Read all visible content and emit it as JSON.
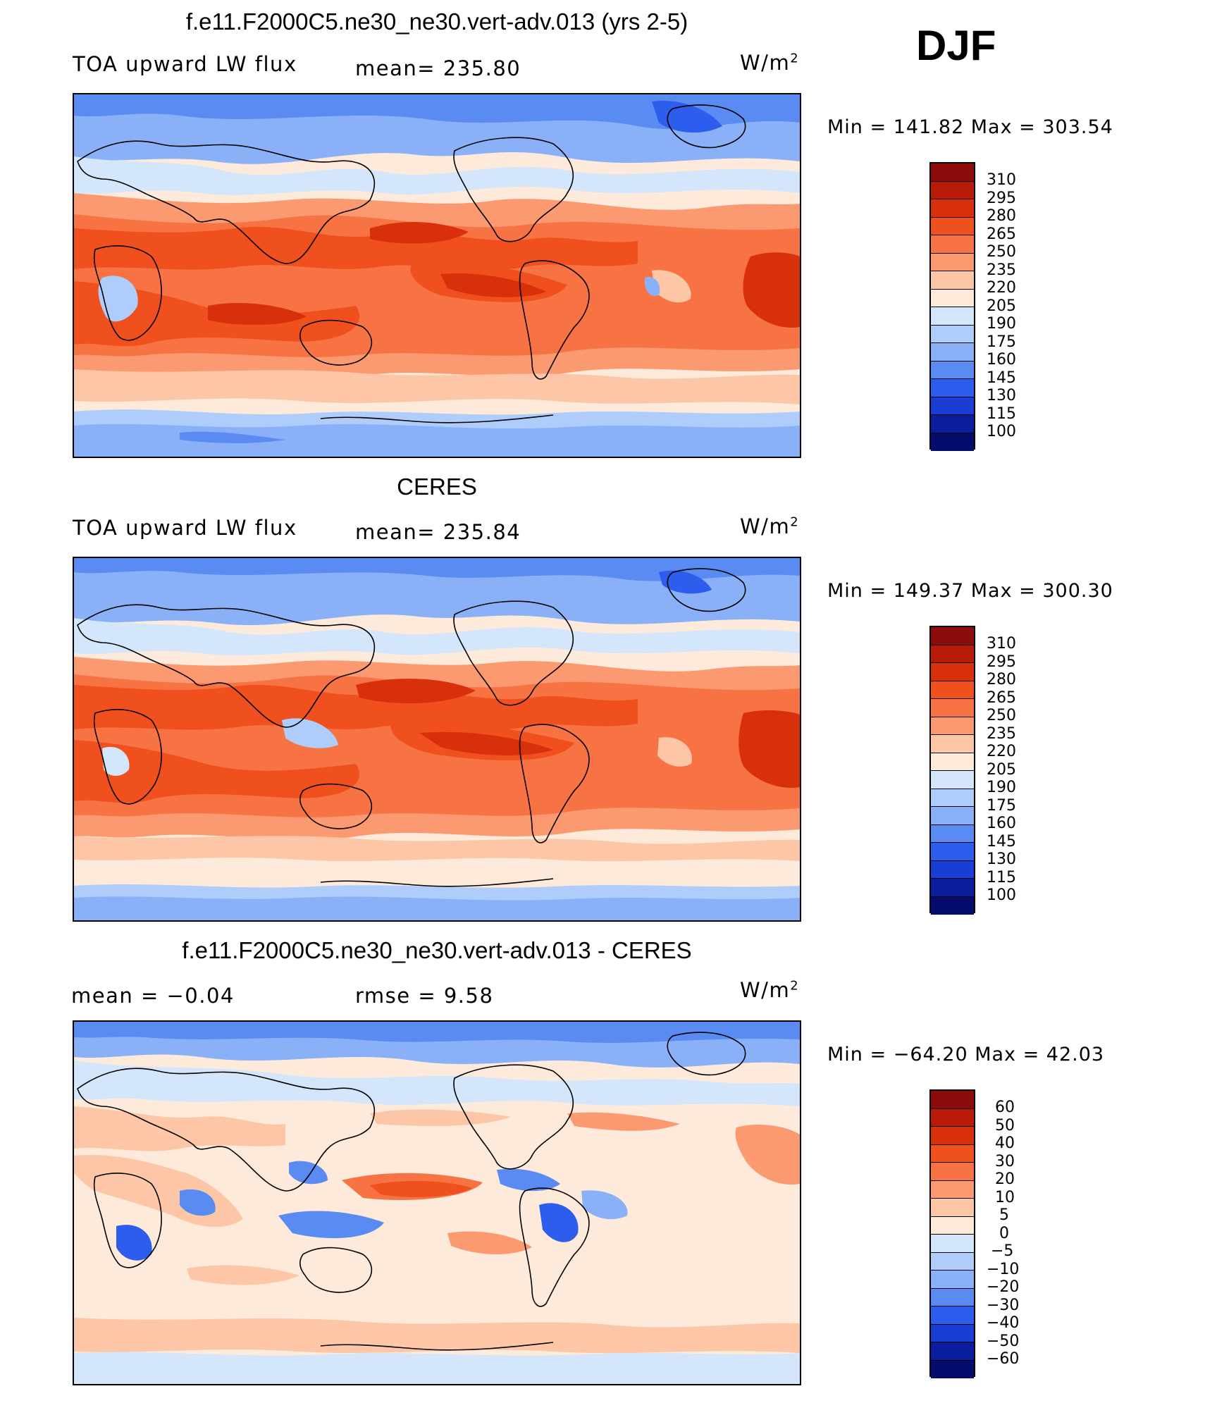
{
  "season": "DJF",
  "panels": [
    {
      "title": "f.e11.F2000C5.ne30_ne30.vert-adv.013 (yrs 2-5)",
      "left_label": "TOA upward  LW flux",
      "center_label": "mean=  235.80",
      "unit": "W/m",
      "unit_sup": "2",
      "minmax": "Min  =  141.82  Max  =  303.54",
      "colorbar": {
        "labels": [
          "310",
          "295",
          "280",
          "265",
          "250",
          "235",
          "220",
          "205",
          "190",
          "175",
          "160",
          "145",
          "130",
          "115",
          "100"
        ],
        "colors": [
          "#8c0b0b",
          "#b71a08",
          "#d7300b",
          "#f0501d",
          "#f87344",
          "#fb9a70",
          "#fdc6a6",
          "#fdeadb",
          "#d3e6fb",
          "#aecdfa",
          "#8ab0f7",
          "#5a8bf2",
          "#2c5ded",
          "#1a3dd3",
          "#0a1d9c",
          "#050c6e"
        ]
      }
    },
    {
      "title": "CERES",
      "left_label": "TOA upward  LW flux",
      "center_label": "mean=  235.84",
      "unit": "W/m",
      "unit_sup": "2",
      "minmax": "Min  =  149.37  Max  =  300.30",
      "colorbar": {
        "labels": [
          "310",
          "295",
          "280",
          "265",
          "250",
          "235",
          "220",
          "205",
          "190",
          "175",
          "160",
          "145",
          "130",
          "115",
          "100"
        ],
        "colors": [
          "#8c0b0b",
          "#b71a08",
          "#d7300b",
          "#f0501d",
          "#f87344",
          "#fb9a70",
          "#fdc6a6",
          "#fdeadb",
          "#d3e6fb",
          "#aecdfa",
          "#8ab0f7",
          "#5a8bf2",
          "#2c5ded",
          "#1a3dd3",
          "#0a1d9c",
          "#050c6e"
        ]
      }
    },
    {
      "title": "f.e11.F2000C5.ne30_ne30.vert-adv.013 - CERES",
      "left_label": "mean  =    −0.04",
      "center_label": "rmse  =     9.58",
      "unit": "W/m",
      "unit_sup": "2",
      "minmax": "Min  =  −64.20  Max  =    42.03",
      "colorbar": {
        "labels": [
          "60",
          "50",
          "40",
          "30",
          "20",
          "10",
          "5",
          "0",
          "−5",
          "−10",
          "−20",
          "−30",
          "−40",
          "−50",
          "−60"
        ],
        "colors": [
          "#8c0b0b",
          "#b71a08",
          "#d7300b",
          "#f0501d",
          "#f87344",
          "#fb9a70",
          "#fdc6a6",
          "#fdeadb",
          "#d3e6fb",
          "#aecdfa",
          "#8ab0f7",
          "#5a8bf2",
          "#2c5ded",
          "#1a3dd3",
          "#0a1d9c",
          "#050c6e"
        ]
      }
    }
  ]
}
